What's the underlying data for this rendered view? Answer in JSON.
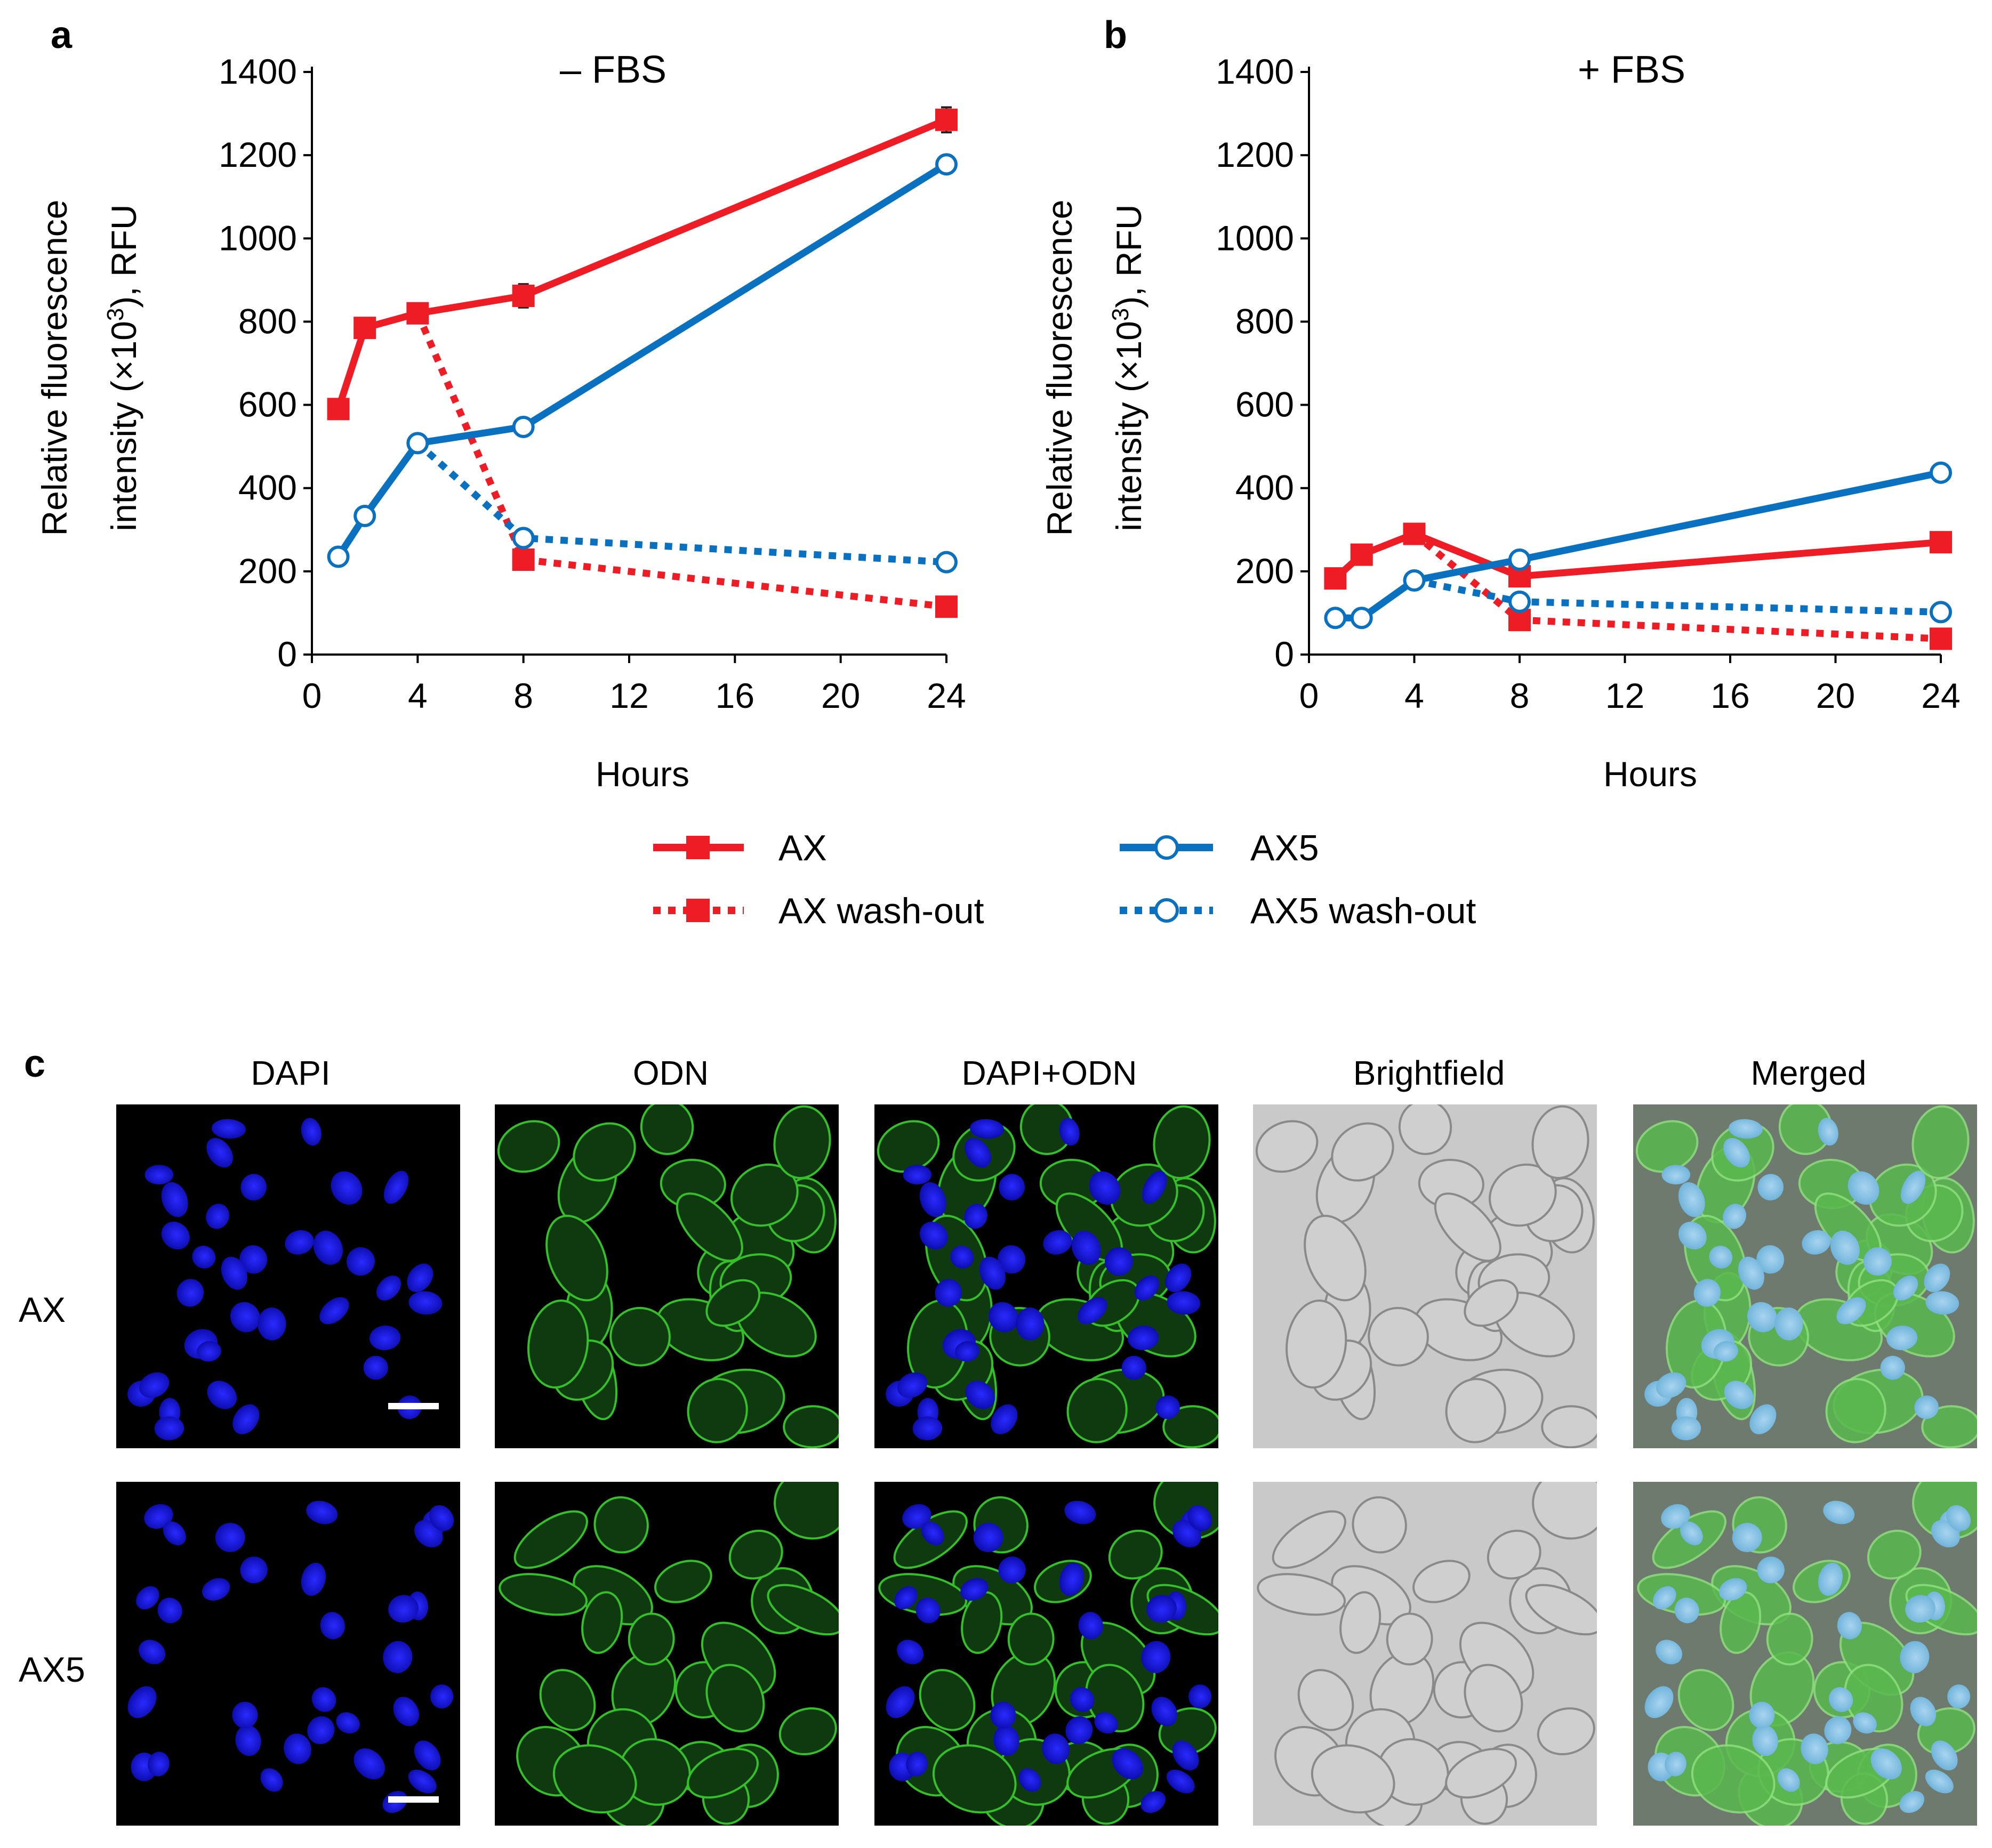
{
  "panel_labels": {
    "a": "a",
    "b": "b",
    "c": "c"
  },
  "legend": {
    "ax": "AX",
    "ax5": "AX5",
    "ax_wash": "AX wash-out",
    "ax5_wash": "AX5 wash-out"
  },
  "micrograph": {
    "columns": [
      "DAPI",
      "ODN",
      "DAPI+ODN",
      "Brightfield",
      "Merged"
    ],
    "rows": [
      "AX",
      "AX5"
    ]
  },
  "colors": {
    "ax": "#ee1c24",
    "ax5": "#0a70c0",
    "dapi": "#1515d8",
    "odn": "#35c02a",
    "brightfield": "#c8c8c8"
  },
  "chart_data": [
    {
      "type": "line",
      "panel": "a",
      "title": "– FBS",
      "xlabel": "Hours",
      "ylabel": "Relative fluorescence intensity (×10³), RFU",
      "x_ticks": [
        "0",
        "4",
        "8",
        "12",
        "16",
        "20",
        "24"
      ],
      "y_ticks": [
        "0",
        "200",
        "400",
        "600",
        "800",
        "1000",
        "1200",
        "1400"
      ],
      "xlim": [
        0,
        24
      ],
      "ylim": [
        0,
        1400
      ],
      "x_axis_note": "axis shows 0,4,8 with a broken scale: 8 to 24 compressed into 12,16,20,24 spacing",
      "series": [
        {
          "name": "AX",
          "style": "solid",
          "marker": "filled-square",
          "x": [
            1,
            2,
            4,
            8,
            24
          ],
          "y": [
            590,
            785,
            820,
            862,
            1285
          ],
          "err": [
            0,
            0,
            0,
            28,
            30
          ]
        },
        {
          "name": "AX5",
          "style": "solid",
          "marker": "open-circle",
          "x": [
            1,
            2,
            4,
            8,
            24
          ],
          "y": [
            235,
            333,
            508,
            547,
            1178
          ],
          "err": [
            0,
            0,
            0,
            0,
            20
          ]
        },
        {
          "name": "AX wash-out",
          "style": "dotted",
          "marker": "filled-square",
          "x": [
            4,
            8,
            24
          ],
          "y": [
            820,
            228,
            115
          ]
        },
        {
          "name": "AX5 wash-out",
          "style": "dotted",
          "marker": "open-circle",
          "x": [
            4,
            8,
            24
          ],
          "y": [
            508,
            280,
            222
          ]
        }
      ]
    },
    {
      "type": "line",
      "panel": "b",
      "title": "+ FBS",
      "xlabel": "Hours",
      "ylabel": "Relative fluorescence intensity (×10³), RFU",
      "x_ticks": [
        "0",
        "4",
        "8",
        "12",
        "16",
        "20",
        "24"
      ],
      "y_ticks": [
        "0",
        "200",
        "400",
        "600",
        "800",
        "1000",
        "1200",
        "1400"
      ],
      "xlim": [
        0,
        24
      ],
      "ylim": [
        0,
        1400
      ],
      "series": [
        {
          "name": "AX",
          "style": "solid",
          "marker": "filled-square",
          "x": [
            1,
            2,
            4,
            8,
            24
          ],
          "y": [
            183,
            240,
            290,
            188,
            270
          ],
          "err": [
            15,
            15,
            0,
            0,
            0
          ]
        },
        {
          "name": "AX5",
          "style": "solid",
          "marker": "open-circle",
          "x": [
            1,
            2,
            4,
            8,
            24
          ],
          "y": [
            88,
            88,
            178,
            228,
            437
          ],
          "err": [
            0,
            0,
            0,
            0,
            15
          ]
        },
        {
          "name": "AX wash-out",
          "style": "dotted",
          "marker": "filled-square",
          "x": [
            4,
            8,
            24
          ],
          "y": [
            290,
            83,
            38
          ]
        },
        {
          "name": "AX5 wash-out",
          "style": "dotted",
          "marker": "open-circle",
          "x": [
            4,
            8,
            24
          ],
          "y": [
            178,
            127,
            102
          ]
        }
      ]
    }
  ]
}
